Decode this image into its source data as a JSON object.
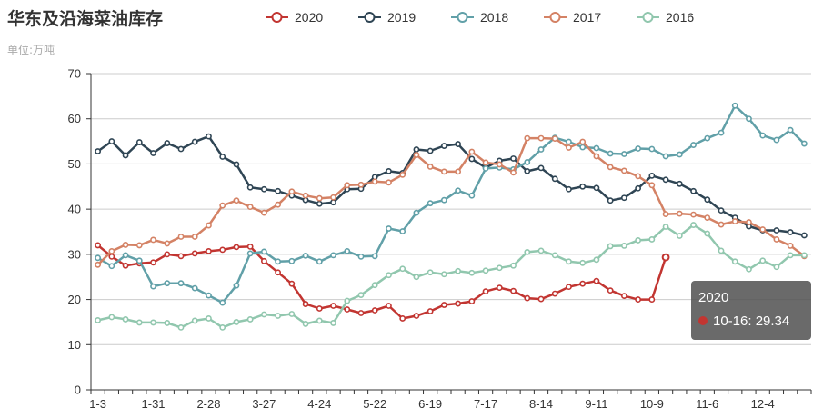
{
  "chart_data": {
    "type": "line",
    "title": "华东及沿海菜油库存",
    "subtitle": "单位:万吨",
    "ylim": [
      0,
      70
    ],
    "yticks": [
      0,
      10,
      20,
      30,
      40,
      50,
      60,
      70
    ],
    "xtick_labels": [
      "1-3",
      "1-31",
      "2-28",
      "3-27",
      "4-24",
      "5-22",
      "6-19",
      "7-17",
      "8-14",
      "9-11",
      "10-9",
      "11-6",
      "12-4"
    ],
    "grid": true,
    "legend_position": "top",
    "series": [
      {
        "name": "2020",
        "color": "#c23531",
        "values": [
          32,
          29.5,
          27.5,
          28,
          28.2,
          30,
          29.6,
          30.2,
          30.7,
          31,
          31.6,
          31.7,
          28.5,
          26,
          23.5,
          19,
          18,
          18.6,
          17.8,
          17,
          17.6,
          18.6,
          15.8,
          16.4,
          17.4,
          18.8,
          19.1,
          19.6,
          21.8,
          22.6,
          21.9,
          20.3,
          20.1,
          21.3,
          22.8,
          23.5,
          24.1,
          22,
          20.8,
          20,
          20,
          29.34
        ]
      },
      {
        "name": "2019",
        "color": "#2f4554",
        "values": [
          52.8,
          55,
          51.9,
          54.8,
          52.4,
          54.6,
          53.3,
          54.9,
          56.1,
          51.6,
          49.9,
          44.8,
          44.4,
          44,
          43,
          42,
          41.2,
          41.5,
          44.4,
          44.5,
          47.1,
          48.4,
          48,
          53.2,
          52.9,
          54,
          54.4,
          51.1,
          49.2,
          50.7,
          51.2,
          48.4,
          49.1,
          46.7,
          44.4,
          45,
          44.7,
          41.9,
          42.5,
          44.6,
          47.4,
          46.5,
          45.6,
          44,
          42.1,
          39.7,
          38.1,
          36.2,
          35.3,
          35.3,
          34.9,
          34.2
        ]
      },
      {
        "name": "2018",
        "color": "#61a0a8",
        "values": [
          29.2,
          27.4,
          29.8,
          28.6,
          22.9,
          23.6,
          23.6,
          22.5,
          20.9,
          19.3,
          23.1,
          30.2,
          30.6,
          28.4,
          28.5,
          29.7,
          28.4,
          29.8,
          30.7,
          29.5,
          29.6,
          35.7,
          35.1,
          39.2,
          41.3,
          42,
          44.1,
          43,
          49,
          49.2,
          48.8,
          50.4,
          53.2,
          55.8,
          54.9,
          53.7,
          53.5,
          52.3,
          52.2,
          53.4,
          53.3,
          51.7,
          52.1,
          54.2,
          55.7,
          56.9,
          62.9,
          60,
          56.3,
          55.3,
          57.5,
          54.5
        ]
      },
      {
        "name": "2017",
        "color": "#d48265",
        "values": [
          27.7,
          30.7,
          32.1,
          32,
          33.2,
          32.4,
          33.9,
          33.9,
          36.4,
          40.8,
          41.9,
          40.5,
          39.2,
          41,
          43.9,
          43,
          42.4,
          42.6,
          45.3,
          45.4,
          46.1,
          45.9,
          47.6,
          52,
          49.4,
          48.3,
          48.3,
          52.7,
          50.3,
          49.9,
          48.1,
          55.7,
          55.7,
          55.6,
          53.6,
          54.9,
          51.7,
          49.3,
          48.5,
          47.3,
          45.3,
          38.9,
          39,
          38.8,
          38.1,
          36.6,
          37.3,
          37.1,
          35.5,
          33.3,
          31.9,
          29.6
        ]
      },
      {
        "name": "2016",
        "color": "#91c7ae",
        "values": [
          15.4,
          16.1,
          15.6,
          14.9,
          14.9,
          14.8,
          13.8,
          15.3,
          15.8,
          13.8,
          15,
          15.6,
          16.7,
          16.4,
          16.8,
          14.6,
          15.3,
          14.8,
          19.7,
          21,
          23.2,
          25.4,
          26.8,
          25,
          26,
          25.6,
          26.3,
          25.9,
          26.4,
          27,
          27.5,
          30.5,
          30.8,
          29.8,
          28.4,
          28.1,
          28.8,
          31.8,
          31.9,
          33.1,
          33.3,
          36.1,
          34.1,
          36.5,
          34.6,
          30.8,
          28.4,
          26.7,
          28.6,
          27.2,
          29.8,
          29.8
        ]
      }
    ]
  },
  "tooltip": {
    "series_name": "2020",
    "text": "10-16: 29.34",
    "color": "#c23531"
  }
}
